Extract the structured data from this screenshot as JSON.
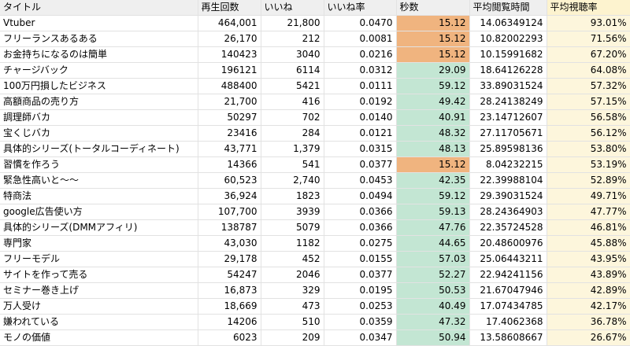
{
  "headers": {
    "title": "タイトル",
    "views": "再生回数",
    "likes": "いいね",
    "like_rate": "いいね率",
    "seconds": "秒数",
    "avg_view_time": "平均閲覧時間",
    "avg_view_rate": "平均視聴率"
  },
  "colors": {
    "header_bg": "#efefef",
    "highlight_header_bg": "#fdf3cf",
    "seconds_orange": "#f0b47f",
    "seconds_green": "#c3e6d3",
    "rate_column_bg": "#fdf6dc",
    "grid_line": "#e2e2e2"
  },
  "rows": [
    {
      "title": "Vtuber",
      "views": "464,001",
      "likes": "21,800",
      "like_rate": "0.0470",
      "seconds": "15.12",
      "seconds_color": "orange",
      "avg_view_time": "14.06349124",
      "avg_view_rate": "93.01%"
    },
    {
      "title": "フリーランスあるある",
      "views": "26,170",
      "likes": "212",
      "like_rate": "0.0081",
      "seconds": "15.12",
      "seconds_color": "orange",
      "avg_view_time": "10.82002293",
      "avg_view_rate": "71.56%"
    },
    {
      "title": "お金持ちになるのは簡単",
      "views": "140423",
      "likes": "3040",
      "like_rate": "0.0216",
      "seconds": "15.12",
      "seconds_color": "orange",
      "avg_view_time": "10.15991682",
      "avg_view_rate": "67.20%"
    },
    {
      "title": "チャージバック",
      "views": "196121",
      "likes": "6114",
      "like_rate": "0.0312",
      "seconds": "29.09",
      "seconds_color": "green",
      "avg_view_time": "18.64126228",
      "avg_view_rate": "64.08%"
    },
    {
      "title": "100万円損したビジネス",
      "views": "488400",
      "likes": "5421",
      "like_rate": "0.0111",
      "seconds": "59.12",
      "seconds_color": "green",
      "avg_view_time": "33.89031524",
      "avg_view_rate": "57.32%"
    },
    {
      "title": "高額商品の売り方",
      "views": "21,700",
      "likes": "416",
      "like_rate": "0.0192",
      "seconds": "49.42",
      "seconds_color": "green",
      "avg_view_time": "28.24138249",
      "avg_view_rate": "57.15%"
    },
    {
      "title": "調理師バカ",
      "views": "50297",
      "likes": "702",
      "like_rate": "0.0140",
      "seconds": "40.91",
      "seconds_color": "green",
      "avg_view_time": "23.14712607",
      "avg_view_rate": "56.58%"
    },
    {
      "title": "宝くじバカ",
      "views": "23416",
      "likes": "284",
      "like_rate": "0.0121",
      "seconds": "48.32",
      "seconds_color": "green",
      "avg_view_time": "27.11705671",
      "avg_view_rate": "56.12%"
    },
    {
      "title": "具体的シリーズ(トータルコーディネート)",
      "views": "43,771",
      "likes": "1,379",
      "like_rate": "0.0315",
      "seconds": "48.13",
      "seconds_color": "green",
      "avg_view_time": "25.89598136",
      "avg_view_rate": "53.80%"
    },
    {
      "title": "習慣を作ろう",
      "views": "14366",
      "likes": "541",
      "like_rate": "0.0377",
      "seconds": "15.12",
      "seconds_color": "orange",
      "avg_view_time": "8.04232215",
      "avg_view_rate": "53.19%"
    },
    {
      "title": "緊急性高いと〜〜",
      "views": "60,523",
      "likes": "2,740",
      "like_rate": "0.0453",
      "seconds": "42.35",
      "seconds_color": "green",
      "avg_view_time": "22.39988104",
      "avg_view_rate": "52.89%"
    },
    {
      "title": "特商法",
      "views": "36,924",
      "likes": "1823",
      "like_rate": "0.0494",
      "seconds": "59.12",
      "seconds_color": "green",
      "avg_view_time": "29.39031524",
      "avg_view_rate": "49.71%"
    },
    {
      "title": "google広告使い方",
      "views": "107,700",
      "likes": "3939",
      "like_rate": "0.0366",
      "seconds": "59.13",
      "seconds_color": "green",
      "avg_view_time": "28.24364903",
      "avg_view_rate": "47.77%"
    },
    {
      "title": "具体的シリーズ(DMMアフィリ)",
      "views": "138787",
      "likes": "5079",
      "like_rate": "0.0366",
      "seconds": "47.76",
      "seconds_color": "green",
      "avg_view_time": "22.35724528",
      "avg_view_rate": "46.81%"
    },
    {
      "title": "専門家",
      "views": "43,030",
      "likes": "1182",
      "like_rate": "0.0275",
      "seconds": "44.65",
      "seconds_color": "green",
      "avg_view_time": "20.48600976",
      "avg_view_rate": "45.88%"
    },
    {
      "title": "フリーモデル",
      "views": "29,178",
      "likes": "452",
      "like_rate": "0.0155",
      "seconds": "57.03",
      "seconds_color": "green",
      "avg_view_time": "25.06443211",
      "avg_view_rate": "43.95%"
    },
    {
      "title": "サイトを作って売る",
      "views": "54247",
      "likes": "2046",
      "like_rate": "0.0377",
      "seconds": "52.27",
      "seconds_color": "green",
      "avg_view_time": "22.94241156",
      "avg_view_rate": "43.89%"
    },
    {
      "title": "セミナー巻き上げ",
      "views": "16,873",
      "likes": "329",
      "like_rate": "0.0195",
      "seconds": "50.53",
      "seconds_color": "green",
      "avg_view_time": "21.67047946",
      "avg_view_rate": "42.89%"
    },
    {
      "title": "万人受け",
      "views": "18,669",
      "likes": "473",
      "like_rate": "0.0253",
      "seconds": "40.49",
      "seconds_color": "green",
      "avg_view_time": "17.07434785",
      "avg_view_rate": "42.17%"
    },
    {
      "title": "嫌われている",
      "views": "14206",
      "likes": "510",
      "like_rate": "0.0359",
      "seconds": "47.32",
      "seconds_color": "green",
      "avg_view_time": "17.4062368",
      "avg_view_rate": "36.78%"
    },
    {
      "title": "モノの価値",
      "views": "6023",
      "likes": "209",
      "like_rate": "0.0347",
      "seconds": "50.94",
      "seconds_color": "green",
      "avg_view_time": "13.58608667",
      "avg_view_rate": "26.67%"
    }
  ]
}
